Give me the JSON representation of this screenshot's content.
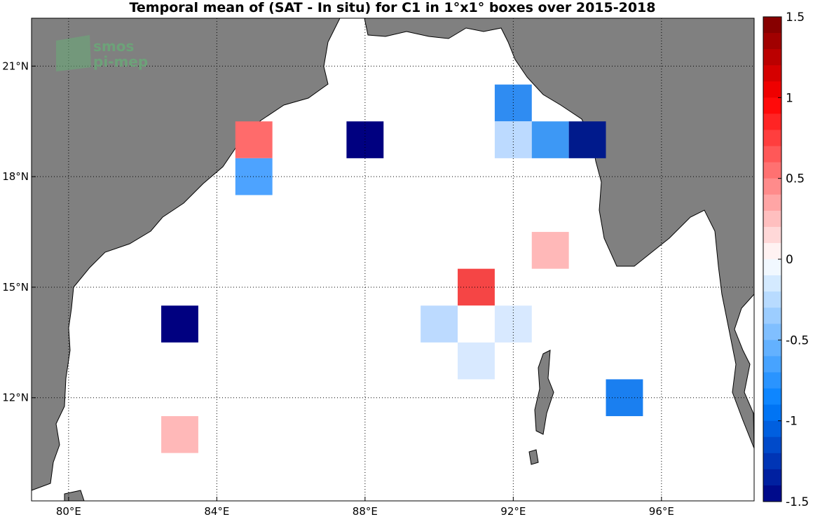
{
  "title": "Temporal mean of (SAT - In situ) for C1 in 1°x1° boxes over 2015-2018",
  "watermark": {
    "line1": "smos",
    "line2": "pi-mep"
  },
  "colors": {
    "land": "#808080",
    "ocean": "#ffffff",
    "grid": "#000000"
  },
  "map": {
    "lon_range": [
      79,
      98.5
    ],
    "lat_range": [
      9.2,
      22.3
    ],
    "lon_ticks": [
      {
        "value": 80,
        "label": "80°E"
      },
      {
        "value": 84,
        "label": "84°E"
      },
      {
        "value": 88,
        "label": "88°E"
      },
      {
        "value": 92,
        "label": "92°E"
      },
      {
        "value": 96,
        "label": "96°E"
      }
    ],
    "lat_ticks": [
      {
        "value": 12,
        "label": "12°N"
      },
      {
        "value": 15,
        "label": "15°N"
      },
      {
        "value": 18,
        "label": "18°N"
      },
      {
        "value": 21,
        "label": "21°N"
      }
    ]
  },
  "chart_data": {
    "type": "heatmap",
    "title": "Temporal mean of (SAT - In situ) for C1 in 1°x1° boxes over 2015-2018",
    "box_size_deg": 1,
    "cells": [
      {
        "lon": 85,
        "lat": 19,
        "value": 0.45,
        "color": "#ff6b6b"
      },
      {
        "lon": 85,
        "lat": 18,
        "value": -0.6,
        "color": "#4da3ff"
      },
      {
        "lon": 88,
        "lat": 19,
        "value": -1.5,
        "color": "#000080"
      },
      {
        "lon": 92,
        "lat": 20,
        "value": -0.7,
        "color": "#2f8cf2"
      },
      {
        "lon": 92,
        "lat": 19,
        "value": -0.25,
        "color": "#bcdaff"
      },
      {
        "lon": 93,
        "lat": 19,
        "value": -0.65,
        "color": "#3d98f5"
      },
      {
        "lon": 94,
        "lat": 19,
        "value": -1.4,
        "color": "#001a8c"
      },
      {
        "lon": 93,
        "lat": 16,
        "value": 0.2,
        "color": "#ffb8b8"
      },
      {
        "lon": 91,
        "lat": 15,
        "value": 0.6,
        "color": "#f54545"
      },
      {
        "lon": 90,
        "lat": 14,
        "value": -0.3,
        "color": "#bcdaff"
      },
      {
        "lon": 91,
        "lat": 14,
        "value": 0.0,
        "color": "#ffffff"
      },
      {
        "lon": 92,
        "lat": 14,
        "value": -0.15,
        "color": "#d8e9ff"
      },
      {
        "lon": 91,
        "lat": 13,
        "value": -0.15,
        "color": "#d8e9ff"
      },
      {
        "lon": 83,
        "lat": 14,
        "value": -1.5,
        "color": "#000080"
      },
      {
        "lon": 95,
        "lat": 12,
        "value": -0.8,
        "color": "#1a7ff0"
      },
      {
        "lon": 83,
        "lat": 11,
        "value": 0.2,
        "color": "#ffb8b8"
      }
    ],
    "colorbar": {
      "range": [
        -1.5,
        1.5
      ],
      "ticks": [
        {
          "value": 1.5,
          "label": "1.5"
        },
        {
          "value": 1,
          "label": "1"
        },
        {
          "value": 0.5,
          "label": "0.5"
        },
        {
          "value": 0,
          "label": "0"
        },
        {
          "value": -0.5,
          "label": "-0.5"
        },
        {
          "value": -1,
          "label": "-1"
        },
        {
          "value": -1.5,
          "label": "-1.5"
        }
      ]
    }
  }
}
